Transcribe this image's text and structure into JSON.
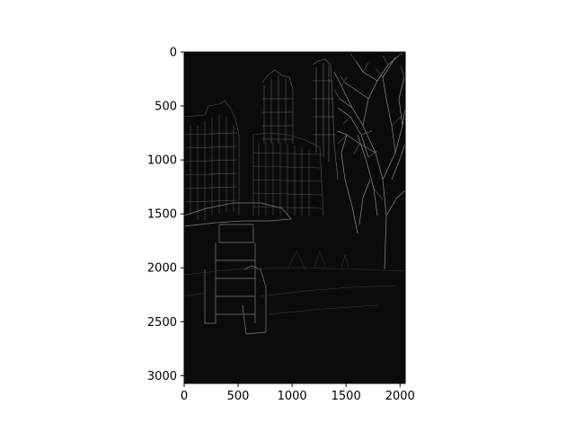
{
  "chart_data": {
    "type": "image",
    "title": "",
    "xlabel": "",
    "ylabel": "",
    "image_width": 2048,
    "image_height": 3072,
    "xlim": [
      0,
      2048
    ],
    "ylim": [
      3072,
      0
    ],
    "x_ticks": [
      0,
      500,
      1000,
      1500,
      2000
    ],
    "y_ticks": [
      0,
      500,
      1000,
      1500,
      2000,
      2500,
      3000
    ],
    "x_tick_labels": [
      "0",
      "500",
      "1000",
      "1500",
      "2000"
    ],
    "y_tick_labels": [
      "0",
      "500",
      "1000",
      "1500",
      "2000",
      "2500",
      "3000"
    ],
    "grid": false,
    "image_content": "edge-detected city street scene (dark)",
    "colors": {
      "background": "#0b0b0b",
      "edge": "#7a7a7a",
      "axis": "#000000"
    }
  }
}
